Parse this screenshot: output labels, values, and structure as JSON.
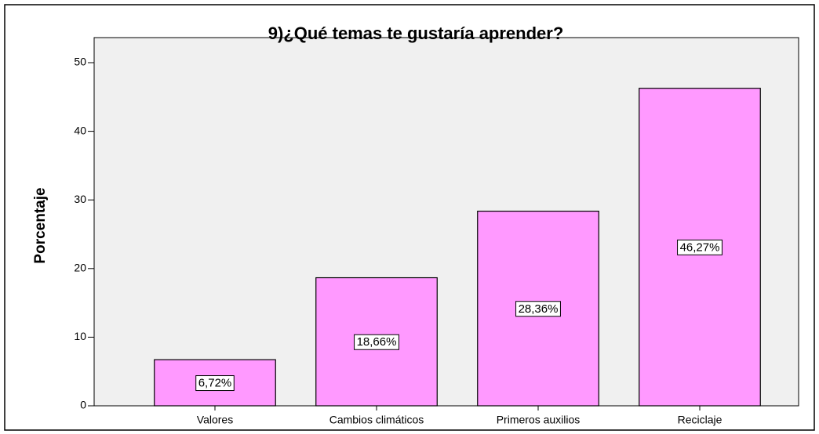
{
  "chart_data": {
    "type": "bar",
    "title": "9)¿Qué temas te gustaría aprender?",
    "y_label": "Porcentaje",
    "categories": [
      "Valores",
      "Cambios climáticos",
      "Primeros auxilios",
      "Reciclaje"
    ],
    "values": [
      6.72,
      18.66,
      28.36,
      46.27
    ],
    "value_labels": [
      "6,72%",
      "18,66%",
      "28,36%",
      "46,27%"
    ],
    "color": "#ff99ff",
    "ylim": [
      0,
      50
    ],
    "yticks": [
      0,
      10,
      20,
      30,
      40,
      50
    ]
  }
}
